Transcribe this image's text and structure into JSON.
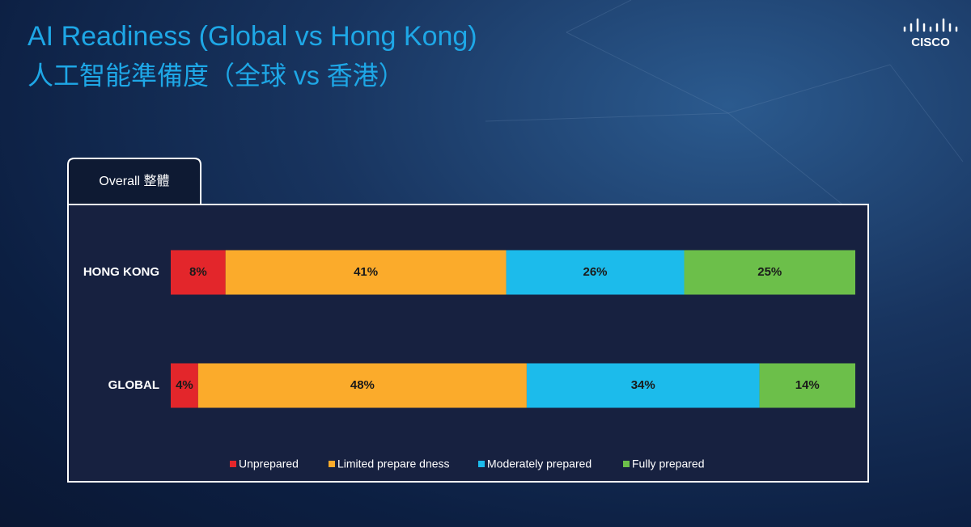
{
  "title": "AI Readiness (Global vs Hong Kong)",
  "subtitle": "人工智能準備度（全球 vs 香港）",
  "logo": "CISCO",
  "chart_data": {
    "type": "stacked-bar",
    "orientation": "horizontal",
    "title": "Overall 整體",
    "categories": [
      "HONG KONG",
      "GLOBAL"
    ],
    "xlim": [
      0,
      100
    ],
    "series": [
      {
        "name": "Unprepared",
        "color": "#e3262b",
        "values": [
          8,
          4
        ],
        "value_labels": [
          "8%",
          "4%"
        ]
      },
      {
        "name": "Limited prepare dness",
        "color": "#fbab2b",
        "values": [
          41,
          48
        ],
        "value_labels": [
          "41%",
          "48%"
        ]
      },
      {
        "name": "Moderately prepared",
        "color": "#1cbbeb",
        "values": [
          26,
          34
        ],
        "value_labels": [
          "26%",
          "34%"
        ]
      },
      {
        "name": "Fully prepared",
        "color": "#6cbf4a",
        "values": [
          25,
          14
        ],
        "value_labels": [
          "25%",
          "14%"
        ]
      }
    ]
  }
}
